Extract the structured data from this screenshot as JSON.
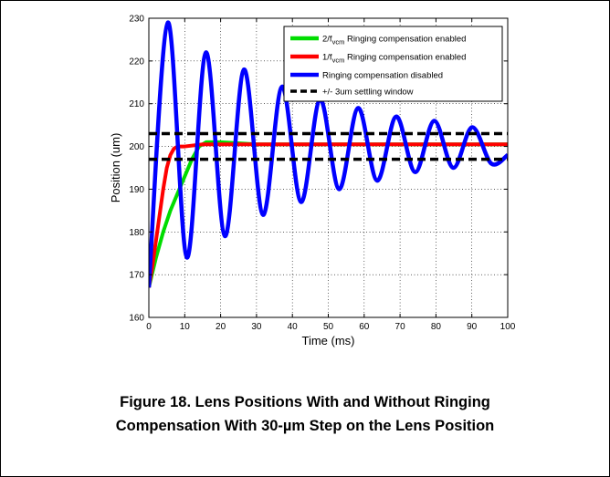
{
  "figure": {
    "caption_line1": "Figure 18. Lens Positions With and Without Ringing",
    "caption_line2": "Compensation With 30-µm Step on the Lens Position"
  },
  "chart_data": {
    "type": "line",
    "xlabel": "Time (ms)",
    "ylabel": "Position (um)",
    "xlim": [
      0,
      100
    ],
    "ylim": [
      160,
      230
    ],
    "xticks": [
      0,
      10,
      20,
      30,
      40,
      50,
      60,
      70,
      80,
      90,
      100
    ],
    "yticks": [
      160,
      170,
      180,
      190,
      200,
      210,
      220,
      230
    ],
    "grid": true,
    "legend_position": "top-right",
    "series": [
      {
        "name": "2/f_vcm Ringing compensation enabled",
        "legend_main": "2/f",
        "legend_sub": "vcm",
        "legend_rest": " Ringing compensation enabled",
        "color": "#00dd00",
        "x": [
          0,
          2,
          4,
          6,
          8,
          10,
          12,
          14,
          16,
          20,
          30,
          40,
          50,
          60,
          70,
          80,
          90,
          100
        ],
        "y": [
          167,
          174,
          180,
          185,
          189,
          193,
          197,
          200,
          201,
          201,
          200.5,
          200.5,
          200.5,
          200.5,
          200.5,
          200.5,
          200.5,
          200.5
        ]
      },
      {
        "name": "1/f_vcm Ringing compensation enabled",
        "legend_main": "1/f",
        "legend_sub": "vcm",
        "legend_rest": " Ringing compensation enabled",
        "color": "#ff0000",
        "x": [
          0,
          1,
          2,
          3,
          4,
          5,
          6,
          7,
          8,
          10,
          15,
          20,
          30,
          40,
          50,
          60,
          70,
          80,
          90,
          100
        ],
        "y": [
          167,
          172,
          178,
          184,
          190,
          195,
          198,
          199.5,
          200,
          200,
          200.5,
          200.5,
          200.5,
          200.5,
          200.5,
          200.5,
          200.5,
          200.5,
          200.5,
          200.5
        ]
      },
      {
        "name": "Ringing compensation disabled",
        "legend_main": "Ringing compensation disabled",
        "legend_sub": "",
        "legend_rest": "",
        "color": "#0000ff",
        "x": [
          0,
          5.3,
          10.6,
          15.9,
          21.2,
          26.5,
          31.8,
          37.1,
          42.4,
          47.7,
          53,
          58.3,
          63.6,
          68.9,
          74.2,
          79.5,
          84.8,
          90.1,
          95.4,
          100
        ],
        "y": [
          167,
          229,
          174,
          222,
          179,
          218,
          184,
          214,
          187,
          211,
          190,
          209,
          192,
          207,
          194,
          206,
          195,
          204.5,
          196,
          198
        ]
      },
      {
        "name": "+/- 3um settling window",
        "legend_main": "+/- 3um settling window",
        "legend_sub": "",
        "legend_rest": "",
        "color": "#000000",
        "dashed": true,
        "x": [
          0,
          100
        ],
        "y_upper": 203,
        "y_lower": 197
      }
    ]
  }
}
